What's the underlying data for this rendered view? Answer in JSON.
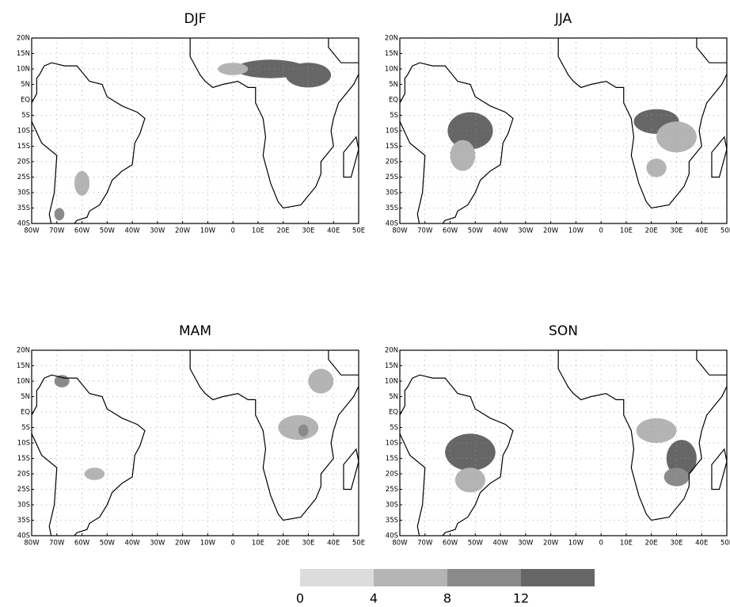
{
  "panels": [
    {
      "title": "DJF"
    },
    {
      "title": "JJA"
    },
    {
      "title": "MAM"
    },
    {
      "title": "SON"
    }
  ],
  "lat_ticks": [
    {
      "value": 20,
      "label": "20N"
    },
    {
      "value": 15,
      "label": "15N"
    },
    {
      "value": 10,
      "label": "10N"
    },
    {
      "value": 5,
      "label": "5N"
    },
    {
      "value": 0,
      "label": "EQ"
    },
    {
      "value": -5,
      "label": "5S"
    },
    {
      "value": -10,
      "label": "10S"
    },
    {
      "value": -15,
      "label": "15S"
    },
    {
      "value": -20,
      "label": "20S"
    },
    {
      "value": -25,
      "label": "25S"
    },
    {
      "value": -30,
      "label": "30S"
    },
    {
      "value": -35,
      "label": "35S"
    },
    {
      "value": -40,
      "label": "40S"
    }
  ],
  "lon_ticks": [
    {
      "value": -80,
      "label": "80W"
    },
    {
      "value": -70,
      "label": "70W"
    },
    {
      "value": -60,
      "label": "60W"
    },
    {
      "value": -50,
      "label": "50W"
    },
    {
      "value": -40,
      "label": "40W"
    },
    {
      "value": -30,
      "label": "30W"
    },
    {
      "value": -20,
      "label": "20W"
    },
    {
      "value": -10,
      "label": "10W"
    },
    0,
    {
      "value": 10,
      "label": "10E"
    },
    {
      "value": 20,
      "label": "20E"
    },
    {
      "value": 30,
      "label": "30E"
    },
    {
      "value": 40,
      "label": "40E"
    },
    {
      "value": 50,
      "label": "50E"
    }
  ],
  "colorbar": {
    "ticks": [
      0,
      4,
      8,
      12
    ],
    "colors": [
      "#dcdcdc",
      "#b4b4b4",
      "#8a8a8a",
      "#666666"
    ]
  }
}
